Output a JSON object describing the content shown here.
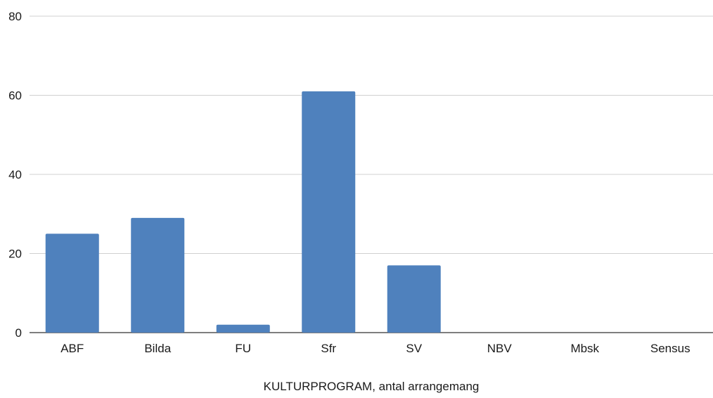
{
  "chart_data": {
    "type": "bar",
    "categories": [
      "ABF",
      "Bilda",
      "FU",
      "Sfr",
      "SV",
      "NBV",
      "Mbsk",
      "Sensus"
    ],
    "values": [
      25,
      29,
      2,
      61,
      17,
      0,
      0,
      0
    ],
    "xlabel": "KULTURPROGRAM, antal arrangemang",
    "ylim": [
      0,
      80
    ],
    "yticks": [
      0,
      20,
      40,
      60,
      80
    ],
    "grid": true,
    "bar_color": "#4f81bd"
  }
}
